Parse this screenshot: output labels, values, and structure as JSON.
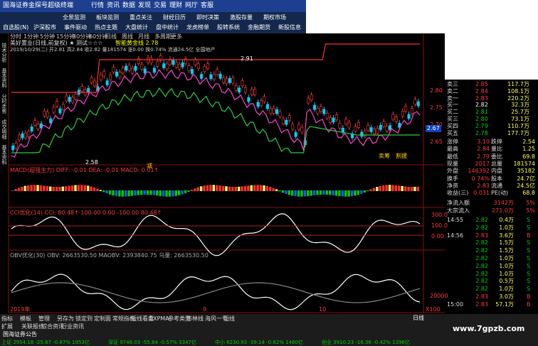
{
  "title": "国海证券金探号超级终端",
  "menu": [
    "行情",
    "资讯",
    "数据",
    "发现",
    "交易",
    "理财",
    "网厅",
    "客服"
  ],
  "toolbar": [
    [
      "全景监测",
      "板块监测",
      "重点关注",
      "财经日历",
      "即时决策",
      "激股存量",
      "期权市场"
    ],
    [
      "自选股(N)",
      "沪深股市",
      "事件驱动",
      "热点主题",
      "大盘统计",
      "盘中统计",
      "龙虎榜单",
      "股转系统",
      "金融期货",
      "新股信息"
    ]
  ],
  "periods": [
    "分时",
    "1分钟",
    "5分钟",
    "15分钟",
    "30分钟",
    "60分钟",
    "日线",
    "周线",
    "月线",
    "多周期",
    "更多"
  ],
  "side_tabs": [
    "技术分析",
    "基本资料",
    "分时走势",
    "成交明细",
    "基本资料"
  ],
  "stock_header": "美好置业(日线,前复权) ★ 测试☆☆☆",
  "indicator": "智能黄金线 2.78",
  "info_line": "2019/10/29(二) 开2.81 高2.84 收2.82 量181574 涨0.00 换0.74% 流通24.5亿 全国地产",
  "price_ticks": [
    "2.80",
    "2.75",
    "2.70",
    "2.65"
  ],
  "price_tag": "2.67",
  "annotations": [
    "2.91",
    "2.58",
    "减",
    "卖筹",
    "割援"
  ],
  "macd_label": "MACD(超强主力) DIFF: -0.01  DEA: -0.01  MACD: 0.01↑",
  "cci_label": "CCI优化(14) CCI: 80.48↑  100.00  0.00  -100.00  80.48↑",
  "cci_ticks": [
    "300.0",
    "100.0",
    "0.00"
  ],
  "obv_label": "OBV优化(30) OBV: 2663530.50  MAOBV: 2393840.75  乌量: 2663530.50",
  "obv_ticks": [
    "20000"
  ],
  "obv_unit": "X100",
  "x_labels": [
    "2019年",
    "9",
    "10"
  ],
  "day_tag": "日线",
  "bottom_tabs": [
    "指标",
    "模板",
    "管理",
    "另存为",
    "锁定到",
    "定制面",
    "常规指标",
    "短线看盘",
    "EXPMA",
    "参考类型",
    "布林线",
    "海风一号",
    "短线"
  ],
  "bottom_tabs2": [
    "扩展",
    "关联报价",
    "综合资讯",
    "行业资讯"
  ],
  "order_book": [
    {
      "label": "卖三",
      "price": "2.85",
      "volume": "117.7万",
      "color": "#ff3b3b"
    },
    {
      "label": "卖二",
      "price": "2.84",
      "volume": "108.1万",
      "color": "#ff3b3b"
    },
    {
      "label": "卖一",
      "price": "2.83",
      "volume": "220.2万",
      "color": "#ff3b3b"
    },
    {
      "label": "买一",
      "price": "2.82",
      "volume": "32.3万",
      "color": "#ffffff"
    },
    {
      "label": "买二",
      "price": "2.81",
      "volume": "25.7万",
      "color": "#00d000"
    },
    {
      "label": "买三",
      "price": "2.80",
      "volume": "73.1万",
      "color": "#00d000"
    },
    {
      "label": "买四",
      "price": "2.79",
      "volume": "110.7万",
      "color": "#00d000"
    },
    {
      "label": "买五",
      "price": "2.78",
      "volume": "177.7万",
      "color": "#00d000"
    }
  ],
  "stats": [
    [
      "涨停",
      "3.10",
      "跌停",
      "2.54"
    ],
    [
      "最高",
      "2.84",
      "量比",
      "1.25"
    ],
    [
      "最低",
      "2.79",
      "委比",
      "69.8"
    ],
    [
      "现量",
      "2017",
      "总量",
      "181574"
    ],
    [
      "外盘",
      "146392",
      "内盘",
      "35182"
    ],
    [
      "换手",
      "0.74%",
      "股本",
      "24.7亿"
    ],
    [
      "净资",
      "2.83",
      "流通",
      "24.5亿"
    ],
    [
      "收益(三)",
      "0.031",
      "PE(动)",
      "68.8"
    ]
  ],
  "flow": [
    [
      "净流入额",
      "3142万",
      "5%"
    ],
    [
      "大宗流入",
      "271.0万",
      "5%"
    ]
  ],
  "trades": [
    [
      "14:55",
      "2.82",
      "0.4万",
      "S"
    ],
    [
      null,
      "2.82",
      "1.0万",
      "S"
    ],
    [
      "14:56",
      "2.83",
      "3.6万",
      "B"
    ],
    [
      null,
      "2.82",
      "1.5万",
      "S"
    ],
    [
      null,
      "2.82",
      "1.5万",
      "S"
    ],
    [
      null,
      "2.82",
      "1.0万",
      "S"
    ],
    [
      null,
      "2.82",
      "1.0万",
      "S"
    ],
    [
      null,
      "2.82",
      "1.0万",
      "S"
    ],
    [
      null,
      "2.82",
      "0.5万",
      "S"
    ],
    [
      null,
      "2.82",
      "1.0万",
      "S"
    ],
    [
      null,
      "2.83",
      "3.0万",
      "B"
    ],
    [
      "15:00",
      "2.83",
      "57.1万",
      "B"
    ]
  ],
  "footer": "国海证券公告",
  "index_bar": [
    "上证 2954.18 -25.87 -0.87% 1953亿",
    "深证 9746.03 -55.84 -0.57% 3347亿",
    "中小 6230.93 -39.14 -0.62% 1460亿",
    "创业 3910.23 -16.36 -0.42% 1396亿"
  ],
  "watermark": "www.7gpzb.com"
}
